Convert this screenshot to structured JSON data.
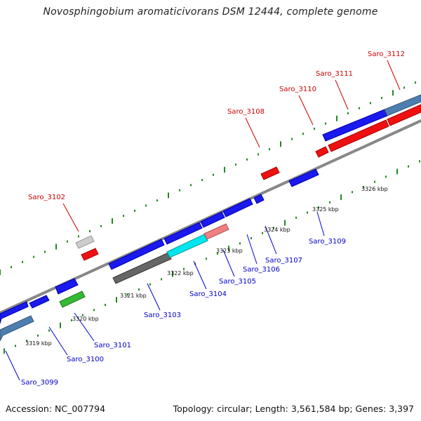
{
  "title": "Novosphingobium aromaticivorans DSM 12444, complete genome",
  "footer": {
    "accession": "Accession: NC_007794",
    "summary": "Topology: circular; Length: 3,561,584 bp; Genes: 3,397"
  },
  "colors": {
    "backbone": "#888888",
    "forward_label": "#0000cc",
    "reverse_label": "#cc0000",
    "tick": "#228822"
  },
  "ruler_labels": [
    "3319 kbp",
    "3320 kbp",
    "3321 kbp",
    "3322 kbp",
    "3323 kbp",
    "3324 kbp",
    "3325 kbp",
    "3326 kbp"
  ],
  "gene_labels": {
    "forward": [
      "Saro_3099",
      "Saro_3100",
      "Saro_3101",
      "Saro_3103",
      "Saro_3104",
      "Saro_3105",
      "Saro_3106",
      "Saro_3107",
      "Saro_3109"
    ],
    "reverse": [
      "Saro_3102",
      "Saro_3108",
      "Saro_3110",
      "Saro_3111",
      "Saro_3112"
    ]
  }
}
